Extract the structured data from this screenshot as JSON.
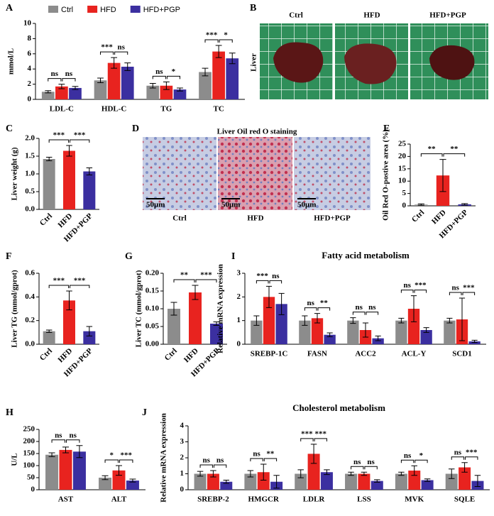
{
  "figure": {
    "panel_labels": [
      "A",
      "B",
      "C",
      "D",
      "E",
      "F",
      "G",
      "H",
      "I",
      "J"
    ],
    "liver_images": {
      "row_label": "Liver",
      "columns": [
        "Ctrl",
        "HFD",
        "HFD+PGP"
      ]
    },
    "staining": {
      "title": "Liver Oil red O staining",
      "columns": [
        "Ctrl",
        "HFD",
        "HFD+PGP"
      ],
      "scale_bars": [
        "50μm",
        "50μm",
        "50μm"
      ]
    }
  },
  "chart_data": [
    {
      "type": "bar",
      "ylabel": "mmol/L",
      "categories": [
        "LDL-C",
        "HDL-C",
        "TG",
        "TC"
      ],
      "series": [
        {
          "name": "Ctrl",
          "color": "#8c8c8c",
          "values": [
            1.0,
            2.5,
            1.8,
            3.6
          ],
          "errors": [
            0.15,
            0.3,
            0.3,
            0.5
          ]
        },
        {
          "name": "HFD",
          "color": "#e8231f",
          "values": [
            1.7,
            4.8,
            1.8,
            6.3
          ],
          "errors": [
            0.3,
            0.7,
            0.5,
            0.8
          ]
        },
        {
          "name": "HFD+PGP",
          "color": "#3b2fa0",
          "values": [
            1.5,
            4.3,
            1.3,
            5.4
          ],
          "errors": [
            0.2,
            0.5,
            0.2,
            0.7
          ]
        }
      ],
      "significance": [
        [
          "ns",
          "ns"
        ],
        [
          "***",
          "ns"
        ],
        [
          "ns",
          "*"
        ],
        [
          "***",
          "*"
        ]
      ],
      "ylim": [
        0,
        10
      ],
      "yticks": [
        0,
        2,
        4,
        6,
        8,
        10
      ],
      "legend": "top"
    },
    {
      "type": "bar",
      "ylabel": "Liver weight (g)",
      "categories": [
        "Ctrl",
        "HFD",
        "HFD+PGP"
      ],
      "colors": [
        "#8c8c8c",
        "#e8231f",
        "#3b2fa0"
      ],
      "values": [
        1.42,
        1.65,
        1.07
      ],
      "errors": [
        0.05,
        0.15,
        0.1
      ],
      "significance": [
        "***",
        "***"
      ],
      "ylim": [
        0,
        2
      ],
      "yticks": [
        {
          "value": 0,
          "label": "0.0"
        },
        0.5,
        {
          "value": 1,
          "label": "1.0"
        },
        1.5,
        {
          "value": 2,
          "label": "2.0"
        }
      ]
    },
    {
      "type": "bar",
      "ylabel": "Oil Red O-postive area (%)",
      "categories": [
        "Ctrl",
        "HFD",
        "HFD+PGP"
      ],
      "colors": [
        "#8c8c8c",
        "#e8231f",
        "#3b2fa0"
      ],
      "values": [
        0.5,
        12.3,
        0.6
      ],
      "errors": [
        0.3,
        6.5,
        0.3
      ],
      "significance": [
        "**",
        "**"
      ],
      "ylim": [
        0,
        25
      ],
      "yticks": [
        0,
        5,
        10,
        15,
        20,
        25
      ]
    },
    {
      "type": "bar",
      "ylabel": "Liver TG (mmol/gprot)",
      "categories": [
        "Ctrl",
        "HFD",
        "HFD+PGP"
      ],
      "colors": [
        "#8c8c8c",
        "#e8231f",
        "#3b2fa0"
      ],
      "values": [
        0.11,
        0.37,
        0.11
      ],
      "errors": [
        0.01,
        0.08,
        0.04
      ],
      "significance": [
        "***",
        "***"
      ],
      "ylim": [
        0,
        0.6
      ],
      "yticks": [
        {
          "value": 0,
          "label": "0.0"
        },
        0.2,
        0.4,
        0.6
      ]
    },
    {
      "type": "bar",
      "ylabel": "Liver TC (mmol/gprot)",
      "categories": [
        "Ctrl",
        "HFD",
        "HFD+PGP"
      ],
      "colors": [
        "#8c8c8c",
        "#e8231f",
        "#3b2fa0"
      ],
      "values": [
        0.1,
        0.146,
        0.058
      ],
      "errors": [
        0.018,
        0.02,
        0.005
      ],
      "significance": [
        "**",
        "***"
      ],
      "ylim": [
        0,
        0.2
      ],
      "yticks": [
        {
          "value": 0,
          "label": "0.00"
        },
        0.05,
        {
          "value": 0.1,
          "label": "0.10"
        },
        0.15,
        {
          "value": 0.2,
          "label": "0.20"
        }
      ]
    },
    {
      "type": "bar",
      "title": "Fatty acid metabolism",
      "ylabel": "Relative mRNA expression",
      "categories": [
        "SREBP-1C",
        "FASN",
        "ACC2",
        "ACL-Y",
        "SCD1"
      ],
      "series": [
        {
          "name": "Ctrl",
          "color": "#8c8c8c",
          "values": [
            1.0,
            1.0,
            1.0,
            1.0,
            1.0
          ],
          "errors": [
            0.2,
            0.2,
            0.12,
            0.1,
            0.1
          ]
        },
        {
          "name": "HFD",
          "color": "#e8231f",
          "values": [
            2.0,
            1.1,
            0.6,
            1.5,
            1.05
          ],
          "errors": [
            0.45,
            0.2,
            0.3,
            0.55,
            0.9
          ]
        },
        {
          "name": "HFD+PGP",
          "color": "#3b2fa0",
          "values": [
            1.7,
            0.4,
            0.25,
            0.6,
            0.12
          ],
          "errors": [
            0.45,
            0.08,
            0.1,
            0.1,
            0.05
          ]
        }
      ],
      "significance": [
        [
          "***",
          "ns"
        ],
        [
          "ns",
          "**"
        ],
        [
          "ns",
          "ns"
        ],
        [
          "ns",
          "***"
        ],
        [
          "ns",
          "***"
        ]
      ],
      "ylim": [
        0,
        3
      ],
      "yticks": [
        0,
        1,
        2,
        3
      ]
    },
    {
      "type": "bar",
      "ylabel": "U/L",
      "categories": [
        "AST",
        "ALT"
      ],
      "series": [
        {
          "name": "Ctrl",
          "color": "#8c8c8c",
          "values": [
            145,
            50
          ],
          "errors": [
            8,
            8
          ]
        },
        {
          "name": "HFD",
          "color": "#e8231f",
          "values": [
            165,
            80
          ],
          "errors": [
            12,
            20
          ]
        },
        {
          "name": "HFD+PGP",
          "color": "#3b2fa0",
          "values": [
            158,
            38
          ],
          "errors": [
            25,
            6
          ]
        }
      ],
      "significance": [
        [
          "ns",
          "ns"
        ],
        [
          "*",
          "***"
        ]
      ],
      "ylim": [
        0,
        250
      ],
      "yticks": [
        0,
        50,
        100,
        150,
        200,
        250
      ]
    },
    {
      "type": "bar",
      "title": "Cholesterol metabolism",
      "ylabel": "Relative mRNA expression",
      "categories": [
        "SREBP-2",
        "HMGCR",
        "LDLR",
        "LSS",
        "MVK",
        "SQLE"
      ],
      "series": [
        {
          "name": "Ctrl",
          "color": "#8c8c8c",
          "values": [
            1.0,
            1.0,
            1.0,
            1.0,
            1.0,
            1.0
          ],
          "errors": [
            0.15,
            0.2,
            0.25,
            0.1,
            0.1,
            0.3
          ]
        },
        {
          "name": "HFD",
          "color": "#e8231f",
          "values": [
            1.0,
            1.1,
            2.25,
            1.0,
            1.2,
            1.4
          ],
          "errors": [
            0.2,
            0.5,
            0.6,
            0.1,
            0.3,
            0.3
          ]
        },
        {
          "name": "HFD+PGP",
          "color": "#3b2fa0",
          "values": [
            0.5,
            0.5,
            1.1,
            0.55,
            0.6,
            0.55
          ],
          "errors": [
            0.1,
            0.4,
            0.15,
            0.08,
            0.08,
            0.35
          ]
        }
      ],
      "significance": [
        [
          "ns",
          "ns"
        ],
        [
          "ns",
          "**"
        ],
        [
          "***",
          "***"
        ],
        [
          "ns",
          "ns"
        ],
        [
          "ns",
          "*"
        ],
        [
          "ns",
          "***"
        ]
      ],
      "ylim": [
        0,
        4
      ],
      "yticks": [
        0,
        1,
        2,
        3,
        4
      ]
    }
  ]
}
